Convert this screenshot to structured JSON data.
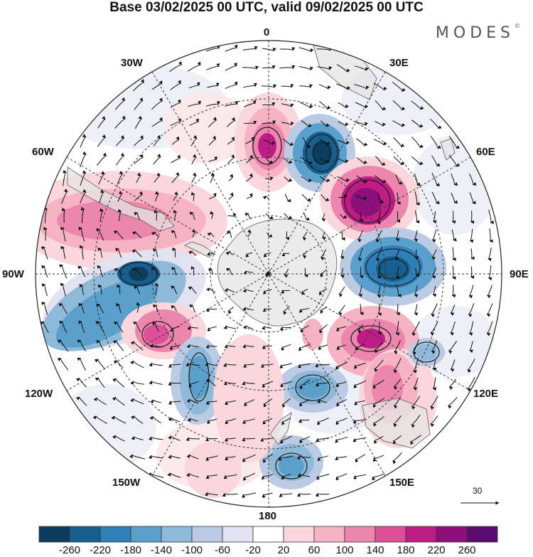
{
  "title": "Base 03/02/2025 00 UTC, valid 09/02/2025 00 UTC",
  "brand": "MODES",
  "brand_mark": "©",
  "lon_labels": {
    "n0": "0",
    "n30e": "30E",
    "n60e": "60E",
    "e90": "90E",
    "s120e": "120E",
    "s150e": "150E",
    "s180": "180",
    "s150w": "150W",
    "s120w": "120W",
    "w90": "90W",
    "n60w": "60W",
    "n30w": "30W"
  },
  "vector_scale_label": "30",
  "colorbar": {
    "colors": [
      "#0d3d5c",
      "#175f8f",
      "#2f80b8",
      "#5ba0cc",
      "#8eb9d9",
      "#bccbe4",
      "#e2e2f1",
      "#ffffff",
      "#f9d7dc",
      "#f5b3c3",
      "#ec86ad",
      "#dd4f98",
      "#be1d86",
      "#8e0f7c",
      "#5a0c6e"
    ],
    "labels": [
      "-260",
      "-220",
      "-180",
      "-140",
      "-100",
      "-60",
      "-20",
      "20",
      "60",
      "100",
      "140",
      "180",
      "220",
      "260"
    ]
  },
  "map_colors": {
    "land": "#e4e4e4",
    "coast": "#777777",
    "grid": "#333333"
  }
}
